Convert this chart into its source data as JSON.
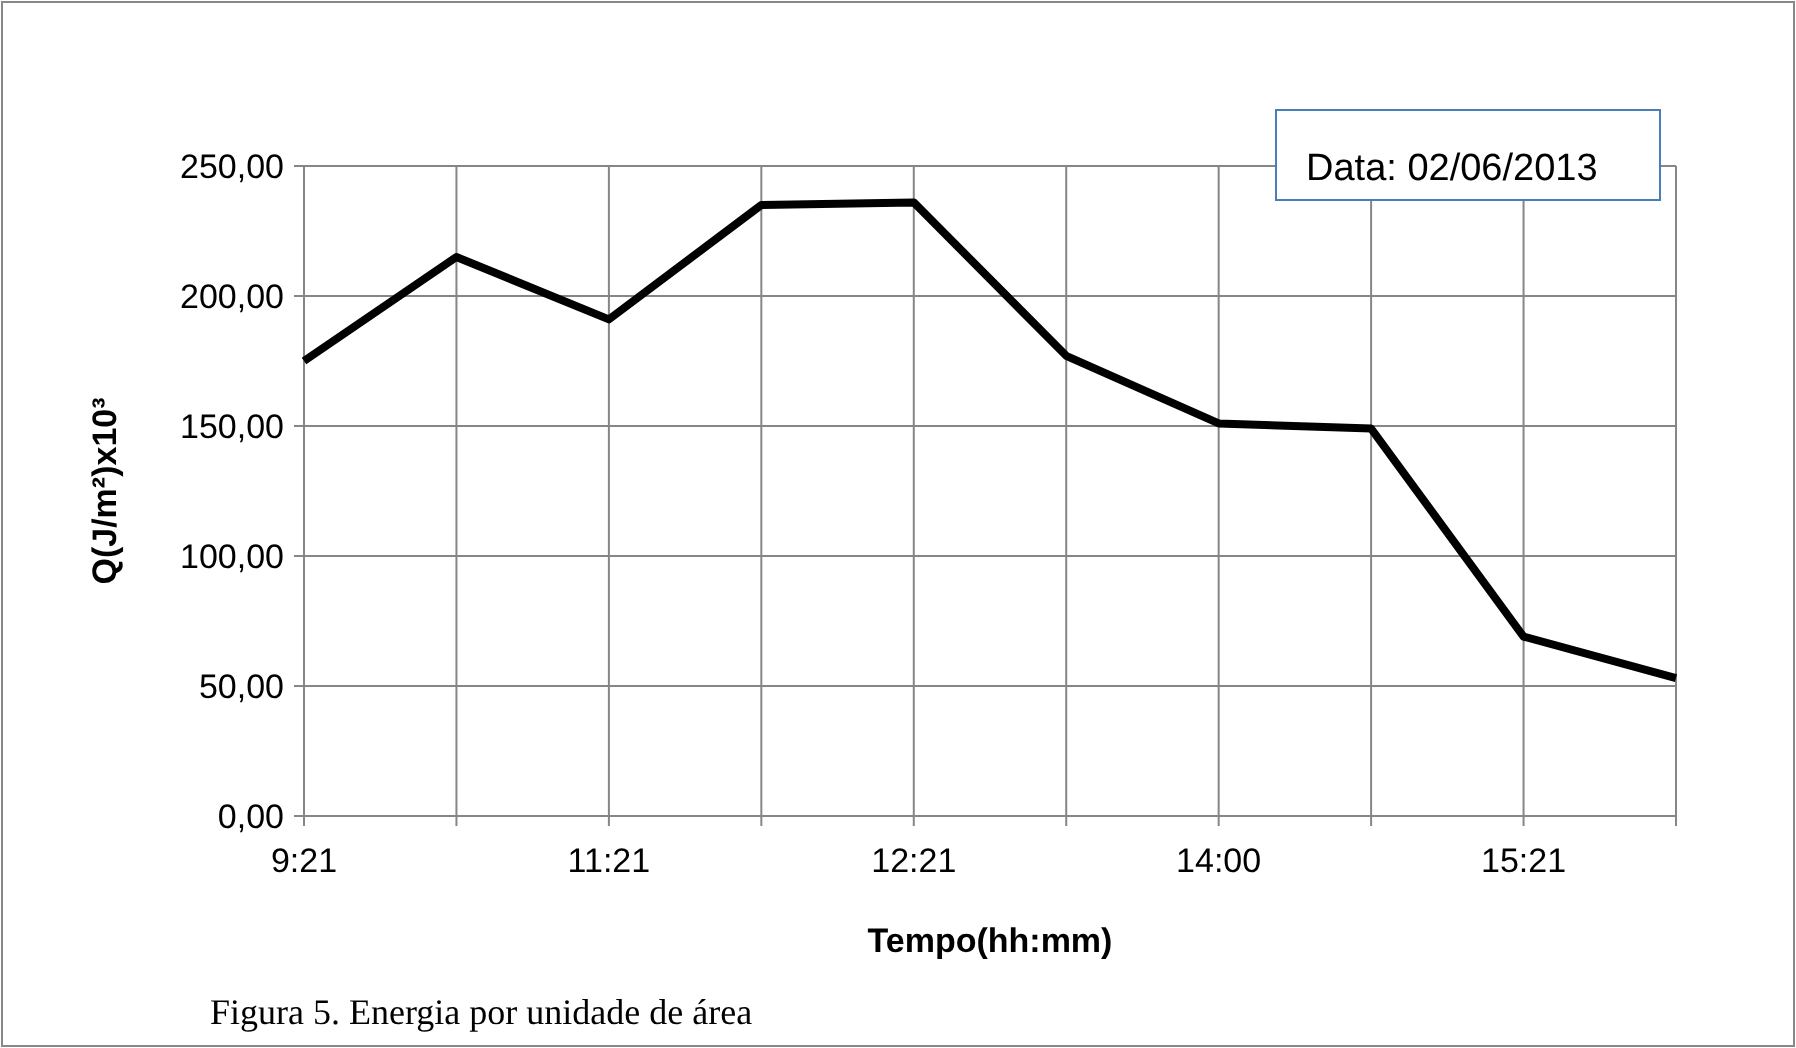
{
  "chart_data": {
    "type": "line",
    "ylabel": "Q(J/m²)x10³",
    "xlabel": "Tempo(hh:mm)",
    "categories": [
      "9:21",
      null,
      "11:21",
      null,
      "12:21",
      null,
      "14:00",
      null,
      "15:21",
      null
    ],
    "series": [
      {
        "color": "#000000",
        "values": [
          175,
          215,
          191,
          235,
          236,
          177,
          151,
          149,
          69,
          53
        ]
      }
    ],
    "ylim": [
      0,
      250
    ],
    "yticks": [
      {
        "value": 0,
        "label": "0,00"
      },
      {
        "value": 50,
        "label": "50,00"
      },
      {
        "value": 100,
        "label": "100,00"
      },
      {
        "value": 150,
        "label": "150,00"
      },
      {
        "value": 200,
        "label": "200,00"
      },
      {
        "value": 250,
        "label": "250,00"
      }
    ],
    "grid": true,
    "marker": "none",
    "line_style": "solid",
    "annotations": [
      "Data: 02/06/2013",
      "Figura 5. Energia por unidade de área"
    ]
  }
}
